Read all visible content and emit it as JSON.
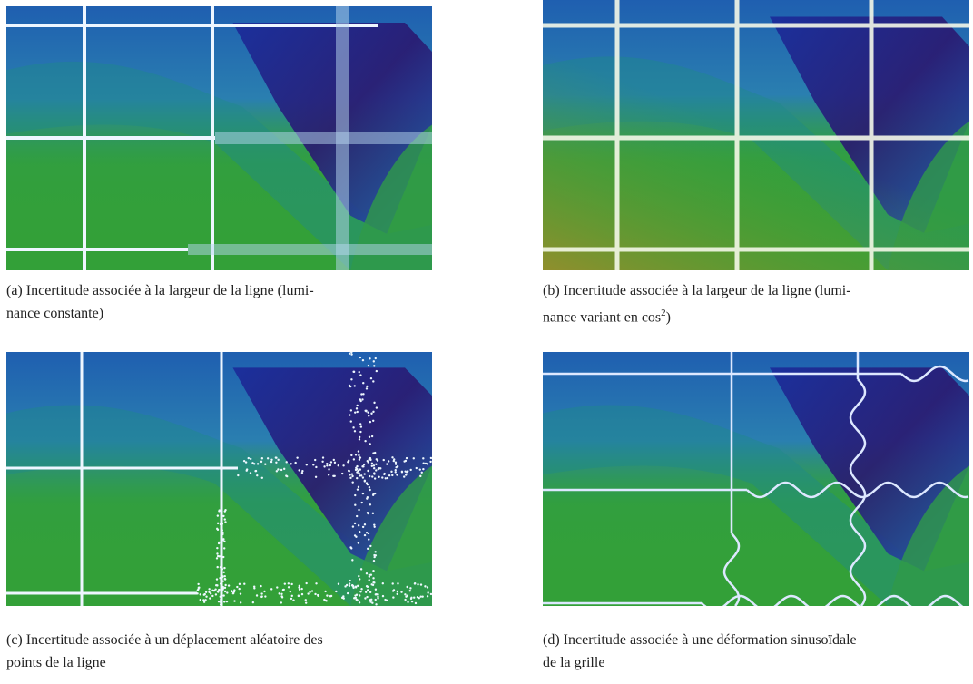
{
  "figures": [
    {
      "caption": [
        "(a) Incertitude associée à la largeur de la ligne (lumi-",
        "nance constante)"
      ]
    },
    {
      "caption": [
        "(b) Incertitude associée à la largeur de la ligne (lumi-",
        "nance variant en cos",
        "2",
        ")"
      ]
    },
    {
      "caption": [
        "(c) Incertitude associée à un déplacement aléatoire des",
        "points de la ligne"
      ]
    },
    {
      "caption": [
        "(d) Incertitude associée à une déformation sinusoïdale",
        "de la grille"
      ]
    }
  ]
}
